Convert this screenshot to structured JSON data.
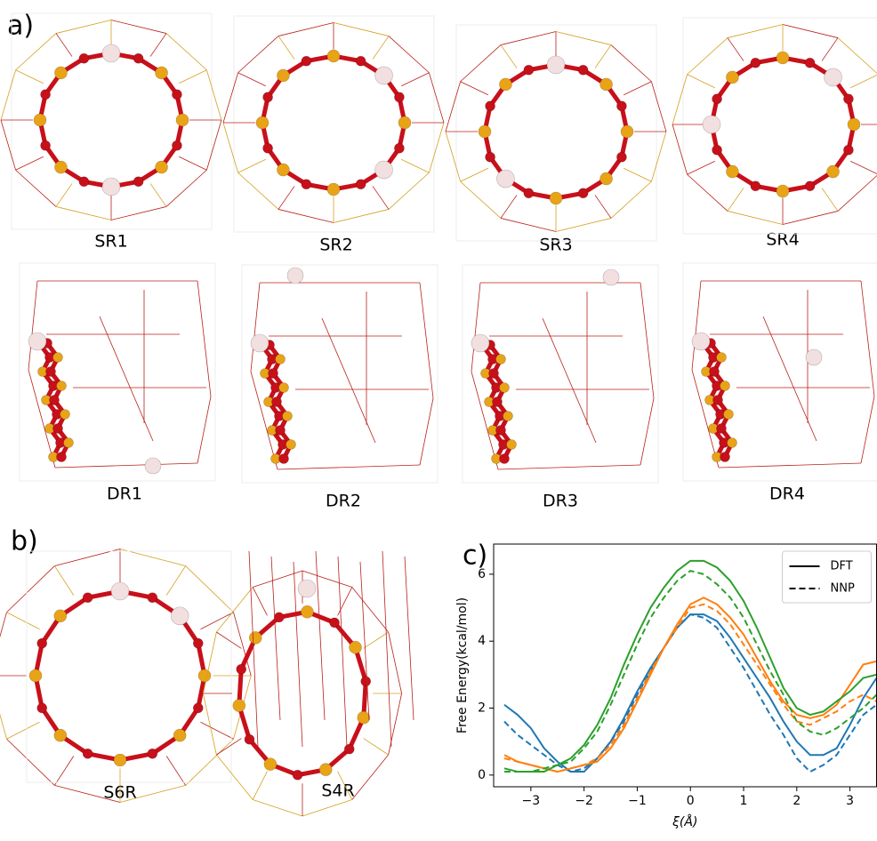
{
  "panel_labels": {
    "a": "a)",
    "b": "b)",
    "c": "c)"
  },
  "structures": {
    "sr": [
      "SR1",
      "SR2",
      "SR3",
      "SR4"
    ],
    "dr": [
      "DR1",
      "DR2",
      "DR3",
      "DR4"
    ],
    "b": [
      "S6R",
      "S4R"
    ]
  },
  "chart_data": {
    "type": "line",
    "xlabel": "ξ(Å)",
    "ylabel": "Free Energy(kcal/mol)",
    "x": [
      -3.5,
      -3.25,
      -3,
      -2.75,
      -2.5,
      -2.25,
      -2,
      -1.75,
      -1.5,
      -1.25,
      -1,
      -0.75,
      -0.5,
      -0.25,
      0,
      0.25,
      0.5,
      0.75,
      1,
      1.25,
      1.5,
      1.75,
      2,
      2.25,
      2.5,
      2.75,
      3,
      3.25,
      3.5
    ],
    "series": [
      {
        "color": "#1f77b4",
        "dash": "solid",
        "values": [
          2.1,
          1.8,
          1.4,
          0.8,
          0.4,
          0.1,
          0.1,
          0.5,
          1.0,
          1.7,
          2.5,
          3.2,
          3.8,
          4.4,
          4.8,
          4.8,
          4.6,
          4.1,
          3.5,
          2.9,
          2.3,
          1.6,
          1.0,
          0.6,
          0.6,
          0.8,
          1.5,
          2.3,
          2.9
        ]
      },
      {
        "color": "#1f77b4",
        "dash": "dashed",
        "values": [
          1.6,
          1.2,
          0.9,
          0.6,
          0.3,
          0.1,
          0.2,
          0.5,
          1.0,
          1.6,
          2.4,
          3.1,
          3.8,
          4.4,
          4.8,
          4.7,
          4.4,
          3.8,
          3.2,
          2.5,
          1.8,
          1.2,
          0.5,
          0.1,
          0.3,
          0.6,
          1.2,
          1.8,
          2.1
        ]
      },
      {
        "color": "#ff7f0e",
        "dash": "solid",
        "values": [
          0.6,
          0.4,
          0.3,
          0.2,
          0.1,
          0.2,
          0.3,
          0.4,
          0.8,
          1.4,
          2.2,
          3.0,
          3.8,
          4.5,
          5.1,
          5.3,
          5.1,
          4.7,
          4.2,
          3.5,
          2.8,
          2.2,
          1.8,
          1.7,
          1.8,
          2.1,
          2.7,
          3.3,
          3.4
        ]
      },
      {
        "color": "#ff7f0e",
        "dash": "dashed",
        "values": [
          0.5,
          0.4,
          0.3,
          0.2,
          0.1,
          0.2,
          0.3,
          0.5,
          0.9,
          1.5,
          2.3,
          3.1,
          3.8,
          4.4,
          5.0,
          5.1,
          4.9,
          4.5,
          3.9,
          3.3,
          2.7,
          2.1,
          1.6,
          1.5,
          1.7,
          1.9,
          2.2,
          2.4,
          2.2
        ]
      },
      {
        "color": "#2ca02c",
        "dash": "solid",
        "values": [
          0.2,
          0.1,
          0.1,
          0.1,
          0.3,
          0.5,
          0.9,
          1.5,
          2.3,
          3.3,
          4.2,
          5.0,
          5.6,
          6.1,
          6.4,
          6.4,
          6.2,
          5.8,
          5.2,
          4.4,
          3.5,
          2.6,
          2.0,
          1.8,
          1.9,
          2.2,
          2.5,
          2.9,
          3.0
        ]
      },
      {
        "color": "#2ca02c",
        "dash": "dashed",
        "values": [
          0.1,
          0.1,
          0.1,
          0.2,
          0.3,
          0.4,
          0.8,
          1.3,
          2.1,
          3.0,
          3.9,
          4.7,
          5.3,
          5.8,
          6.1,
          6.0,
          5.7,
          5.3,
          4.7,
          3.9,
          3.1,
          2.4,
          1.6,
          1.3,
          1.2,
          1.4,
          1.7,
          2.0,
          2.4
        ]
      }
    ],
    "xlim": [
      -3.7,
      3.5
    ],
    "ylim": [
      -0.35,
      6.9
    ],
    "xticks": [
      {
        "value": -3,
        "label": "−3"
      },
      {
        "value": -2,
        "label": "−2"
      },
      {
        "value": -1,
        "label": "−1"
      },
      0,
      1,
      2,
      3
    ],
    "yticks": [
      0,
      2,
      4,
      6
    ],
    "legend": {
      "position": "upper right",
      "color": "#000000",
      "entries": [
        {
          "label": "DFT",
          "dash": "solid"
        },
        {
          "label": "NNP",
          "dash": "dashed"
        }
      ]
    }
  }
}
